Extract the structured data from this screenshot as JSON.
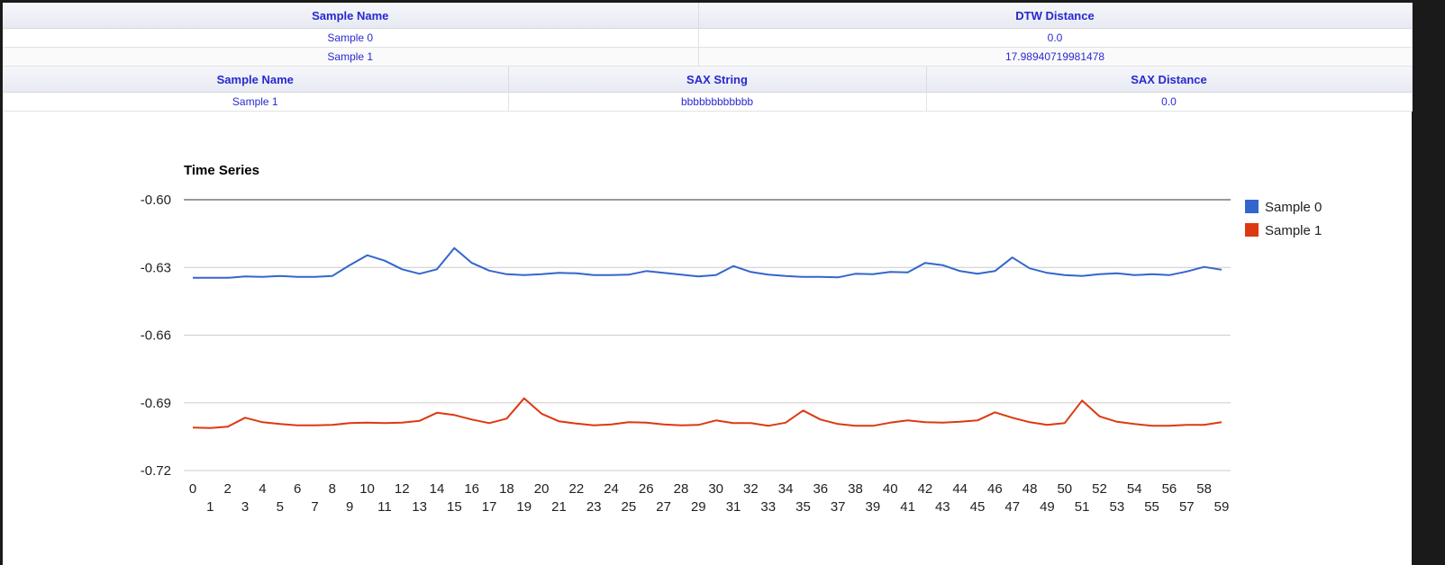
{
  "dtw_table": {
    "headers": [
      "Sample Name",
      "DTW Distance"
    ],
    "rows": [
      [
        "Sample 0",
        "0.0"
      ],
      [
        "Sample 1",
        "17.98940719981478"
      ]
    ]
  },
  "sax_table": {
    "headers": [
      "Sample Name",
      "SAX String",
      "SAX Distance"
    ],
    "rows": [
      [
        "Sample 1",
        "bbbbbbbbbbbb",
        "0.0"
      ]
    ]
  },
  "chart_data": {
    "type": "line",
    "title": "Time Series",
    "xlabel": "",
    "ylabel": "",
    "ylim": [
      -0.72,
      -0.6
    ],
    "yticks": [
      "-0.60",
      "-0.63",
      "-0.66",
      "-0.69",
      "-0.72"
    ],
    "ytick_values": [
      -0.6,
      -0.63,
      -0.66,
      -0.69,
      -0.72
    ],
    "grid": true,
    "legend_position": "right",
    "x": [
      0,
      1,
      2,
      3,
      4,
      5,
      6,
      7,
      8,
      9,
      10,
      11,
      12,
      13,
      14,
      15,
      16,
      17,
      18,
      19,
      20,
      21,
      22,
      23,
      24,
      25,
      26,
      27,
      28,
      29,
      30,
      31,
      32,
      33,
      34,
      35,
      36,
      37,
      38,
      39,
      40,
      41,
      42,
      43,
      44,
      45,
      46,
      47,
      48,
      49,
      50,
      51,
      52,
      53,
      54,
      55,
      56,
      57,
      58,
      59
    ],
    "series": [
      {
        "name": "Sample 0",
        "color": "#3366cc",
        "values": [
          -0.6346,
          -0.6346,
          -0.6346,
          -0.634,
          -0.6342,
          -0.6338,
          -0.6342,
          -0.6342,
          -0.6338,
          -0.629,
          -0.6246,
          -0.627,
          -0.6308,
          -0.6328,
          -0.6308,
          -0.6214,
          -0.628,
          -0.6314,
          -0.633,
          -0.6334,
          -0.633,
          -0.6324,
          -0.6326,
          -0.6334,
          -0.6334,
          -0.6332,
          -0.6316,
          -0.6324,
          -0.6332,
          -0.634,
          -0.6334,
          -0.6294,
          -0.632,
          -0.6332,
          -0.6338,
          -0.6342,
          -0.6342,
          -0.6344,
          -0.6328,
          -0.633,
          -0.632,
          -0.6322,
          -0.628,
          -0.629,
          -0.6316,
          -0.6328,
          -0.6316,
          -0.6256,
          -0.6304,
          -0.6324,
          -0.6334,
          -0.6338,
          -0.633,
          -0.6326,
          -0.6334,
          -0.633,
          -0.6334,
          -0.6318,
          -0.6298,
          -0.631
        ]
      },
      {
        "name": "Sample 1",
        "color": "#dc3912",
        "values": [
          -0.701,
          -0.7012,
          -0.7006,
          -0.6966,
          -0.6986,
          -0.6994,
          -0.7,
          -0.7,
          -0.6998,
          -0.699,
          -0.6988,
          -0.699,
          -0.6988,
          -0.698,
          -0.6944,
          -0.6954,
          -0.6974,
          -0.699,
          -0.697,
          -0.688,
          -0.6948,
          -0.6982,
          -0.6992,
          -0.7,
          -0.6996,
          -0.6986,
          -0.6988,
          -0.6996,
          -0.7,
          -0.6998,
          -0.6978,
          -0.699,
          -0.699,
          -0.7002,
          -0.6988,
          -0.6934,
          -0.6974,
          -0.6994,
          -0.7002,
          -0.7002,
          -0.6988,
          -0.6978,
          -0.6986,
          -0.6988,
          -0.6984,
          -0.6978,
          -0.6942,
          -0.6966,
          -0.6986,
          -0.6998,
          -0.699,
          -0.689,
          -0.696,
          -0.6984,
          -0.6994,
          -0.7002,
          -0.7002,
          -0.6998,
          -0.6998,
          -0.6986
        ]
      }
    ]
  }
}
